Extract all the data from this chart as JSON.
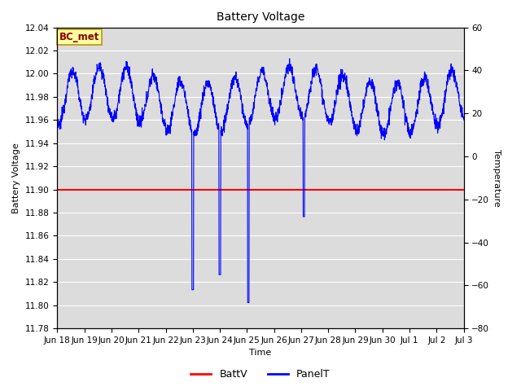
{
  "title": "Battery Voltage",
  "xlabel": "Time",
  "ylabel_left": "Battery Voltage",
  "ylabel_right": "Temperature",
  "ylim_left": [
    11.78,
    12.04
  ],
  "ylim_right": [
    -80,
    60
  ],
  "yticks_left": [
    11.78,
    11.8,
    11.82,
    11.84,
    11.86,
    11.88,
    11.9,
    11.92,
    11.94,
    11.96,
    11.98,
    12.0,
    12.02,
    12.04
  ],
  "yticks_right": [
    -80,
    -60,
    -40,
    -20,
    0,
    20,
    40,
    60
  ],
  "xtick_labels": [
    "Jun 18",
    "Jun 19",
    "Jun 20",
    "Jun 21",
    "Jun 22",
    "Jun 23",
    "Jun 24",
    "Jun 25",
    "Jun 26",
    "Jun 27",
    "Jun 28",
    "Jun 29",
    "Jun 30",
    "Jul 1",
    "Jul 2",
    "Jul 3"
  ],
  "batt_v": 11.9,
  "batt_color": "#ff0000",
  "panel_color": "#0000ff",
  "bg_color": "#dcdcdc",
  "annotation_text": "BC_met",
  "annotation_bg": "#ffffa0",
  "annotation_border": "#b8960c",
  "annotation_color": "#8b0000",
  "grid_color": "#ffffff",
  "title_fontsize": 10,
  "axis_label_fontsize": 8,
  "tick_fontsize": 7.5
}
